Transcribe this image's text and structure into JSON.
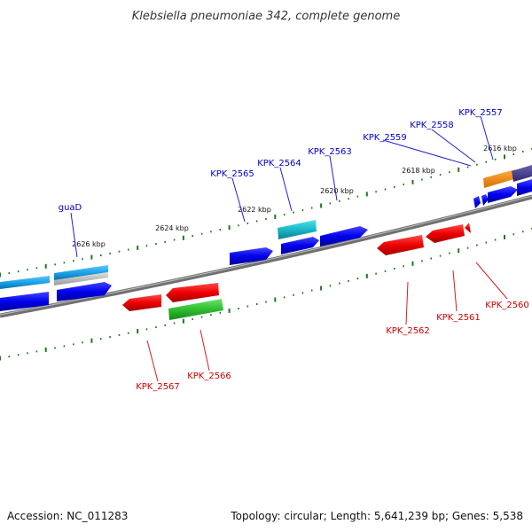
{
  "title": "Klebsiella pneumoniae 342, complete genome",
  "footer": {
    "accession": "Accession: NC_011283",
    "summary": "Topology: circular; Length: 5,641,239 bp; Genes: 5,538"
  },
  "colors": {
    "backbone": "#808080",
    "forward_label": "#0000cc",
    "reverse_label": "#cc0000",
    "tick": "#1e7a1e",
    "cds_forward": "#0000ee",
    "cds_reverse": "#ee0000",
    "rna_blue": "#1aa3e8",
    "rna_teal": "#1ab8c8",
    "rna_green": "#2dbf2d",
    "orange": "#ff8c00",
    "purple": "#483d8b"
  },
  "tick_labels": [
    "2626 kbp",
    "2624 kbp",
    "2622 kbp",
    "2620 kbp",
    "2618 kbp",
    "2616 kbp"
  ],
  "labels_forward": [
    "guaD",
    "KPK_2565",
    "KPK_2564",
    "KPK_2563",
    "KPK_2559",
    "KPK_2558",
    "KPK_2557"
  ],
  "labels_reverse": [
    "KPK_2567",
    "KPK_2566",
    "KPK_2562",
    "KPK_2561",
    "KPK_2560"
  ]
}
